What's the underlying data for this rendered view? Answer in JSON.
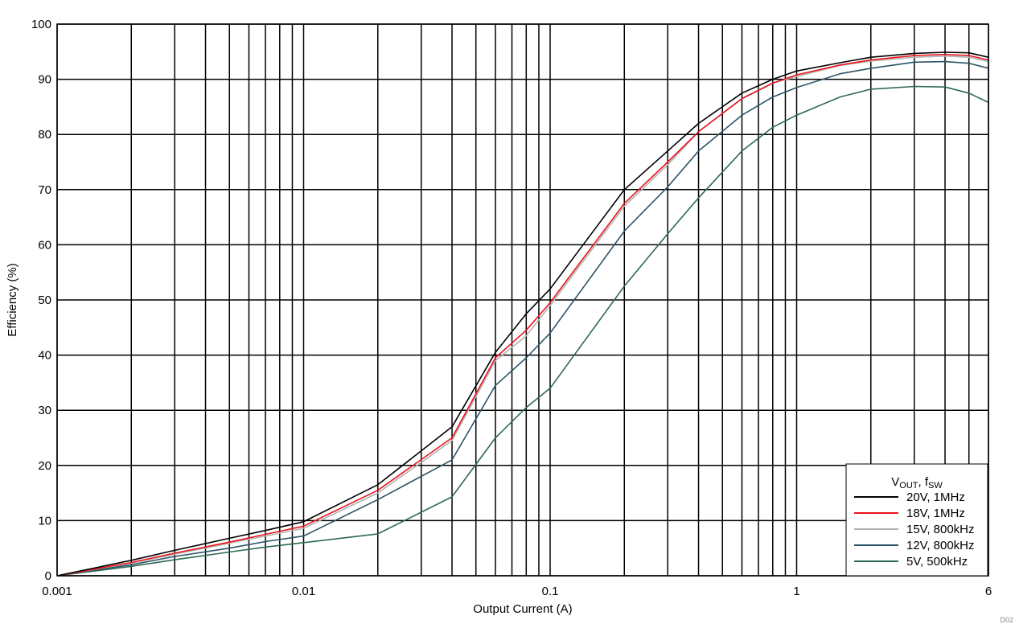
{
  "chart_data": {
    "type": "line",
    "title": "",
    "xlabel": "Output Current (A)",
    "ylabel": "Efficiency (%)",
    "xscale": "log",
    "xlim": [
      0.001,
      6
    ],
    "ylim": [
      0,
      100
    ],
    "grid": true,
    "legend_position": "bottom-right",
    "legend_title": {
      "main": "V",
      "sub1": "OUT",
      "mid": ", f",
      "sub2": "SW"
    },
    "x_tick_labels": [
      {
        "value": 0.001,
        "label": "0.001"
      },
      {
        "value": 0.01,
        "label": "0.01"
      },
      {
        "value": 0.1,
        "label": "0.1"
      },
      {
        "value": 1,
        "label": "1"
      },
      {
        "value": 6,
        "label": "6"
      }
    ],
    "y_ticks": [
      0,
      10,
      20,
      30,
      40,
      50,
      60,
      70,
      80,
      90,
      100
    ],
    "x_minor_gridlines": [
      0.002,
      0.003,
      0.004,
      0.005,
      0.006,
      0.007,
      0.008,
      0.009,
      0.02,
      0.03,
      0.04,
      0.05,
      0.06,
      0.07,
      0.08,
      0.09,
      0.2,
      0.3,
      0.4,
      0.5,
      0.6,
      0.7,
      0.8,
      0.9,
      2,
      3,
      4,
      5
    ],
    "series": [
      {
        "name": "20V, 1MHz",
        "color": "#000000",
        "x": [
          0.001,
          0.002,
          0.003,
          0.005,
          0.007,
          0.01,
          0.02,
          0.04,
          0.06,
          0.08,
          0.1,
          0.2,
          0.3,
          0.4,
          0.6,
          0.8,
          1,
          1.5,
          2,
          3,
          4,
          5,
          6
        ],
        "y": [
          0,
          2.8,
          4.6,
          6.8,
          8.2,
          9.8,
          16.5,
          27,
          40.5,
          47.5,
          52,
          70,
          77,
          82,
          87.5,
          90,
          91.5,
          93,
          94,
          94.7,
          94.9,
          94.8,
          94
        ]
      },
      {
        "name": "18V, 1MHz",
        "color": "#e8141c",
        "x": [
          0.001,
          0.002,
          0.003,
          0.005,
          0.007,
          0.01,
          0.02,
          0.04,
          0.06,
          0.08,
          0.1,
          0.2,
          0.3,
          0.4,
          0.6,
          0.8,
          1,
          1.5,
          2,
          3,
          4,
          5,
          6
        ],
        "y": [
          0,
          2.4,
          4.1,
          6.1,
          7.5,
          9.0,
          15.5,
          25,
          39.5,
          44.5,
          49.5,
          67.5,
          75,
          80.5,
          86.5,
          89.3,
          90.8,
          92.6,
          93.5,
          94.3,
          94.5,
          94.3,
          93.5
        ]
      },
      {
        "name": "15V, 800kHz",
        "color": "#b2b2b2",
        "x": [
          0.001,
          0.002,
          0.003,
          0.005,
          0.007,
          0.01,
          0.02,
          0.04,
          0.06,
          0.08,
          0.1,
          0.2,
          0.3,
          0.4,
          0.6,
          0.8,
          1,
          1.5,
          2,
          3,
          4,
          5,
          6
        ],
        "y": [
          0,
          2.3,
          3.9,
          5.9,
          7.2,
          8.6,
          15,
          24.5,
          39,
          43.5,
          49,
          67,
          74.5,
          80.5,
          86.5,
          89.3,
          90.5,
          92.5,
          93.3,
          94,
          94.2,
          94,
          93.2
        ]
      },
      {
        "name": "12V, 800kHz",
        "color": "#2b5468",
        "x": [
          0.001,
          0.002,
          0.003,
          0.005,
          0.007,
          0.01,
          0.02,
          0.04,
          0.06,
          0.08,
          0.1,
          0.2,
          0.3,
          0.4,
          0.6,
          0.8,
          1,
          1.5,
          2,
          3,
          4,
          5,
          6
        ],
        "y": [
          0,
          2.0,
          3.5,
          5.0,
          6.2,
          7.2,
          13.8,
          21,
          34.5,
          39.5,
          44,
          62.5,
          70.5,
          77,
          83.5,
          86.8,
          88.5,
          91,
          92,
          93.1,
          93.2,
          92.9,
          92
        ]
      },
      {
        "name": "5V, 500kHz",
        "color": "#2d6a52",
        "x": [
          0.001,
          0.002,
          0.003,
          0.005,
          0.007,
          0.01,
          0.02,
          0.04,
          0.06,
          0.08,
          0.1,
          0.2,
          0.3,
          0.4,
          0.6,
          0.8,
          1,
          1.5,
          2,
          3,
          4,
          5,
          6
        ],
        "y": [
          0,
          1.7,
          2.9,
          4.3,
          5.2,
          6.0,
          7.6,
          14.3,
          25,
          30.5,
          34,
          52.5,
          62,
          68.5,
          77,
          81.3,
          83.5,
          86.8,
          88.2,
          88.7,
          88.6,
          87.5,
          85.8
        ]
      }
    ],
    "footnote": "D02"
  }
}
